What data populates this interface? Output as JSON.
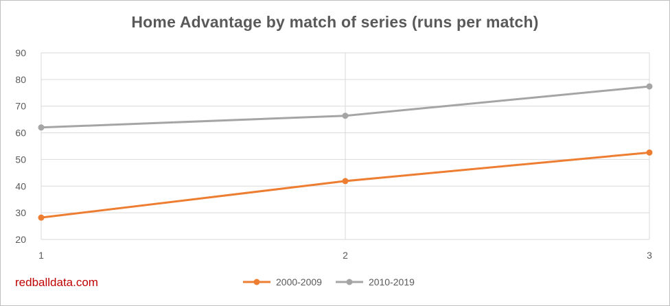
{
  "chart_data": {
    "type": "line",
    "title": "Home Advantage by match of series (runs per match)",
    "x": [
      1,
      2,
      3
    ],
    "xticks": [
      "1",
      "2",
      "3"
    ],
    "ylim": [
      20,
      90
    ],
    "yticks": [
      "20",
      "30",
      "40",
      "50",
      "60",
      "70",
      "80",
      "90"
    ],
    "grid": true,
    "legend_position": "bottom",
    "series": [
      {
        "name": "2000-2009",
        "color": "#ed7d31",
        "values": [
          28.2,
          41.9,
          52.6
        ]
      },
      {
        "name": "2010-2019",
        "color": "#a5a5a5",
        "values": [
          62,
          66.4,
          77.4
        ]
      }
    ]
  },
  "watermark": "redballdata.com"
}
